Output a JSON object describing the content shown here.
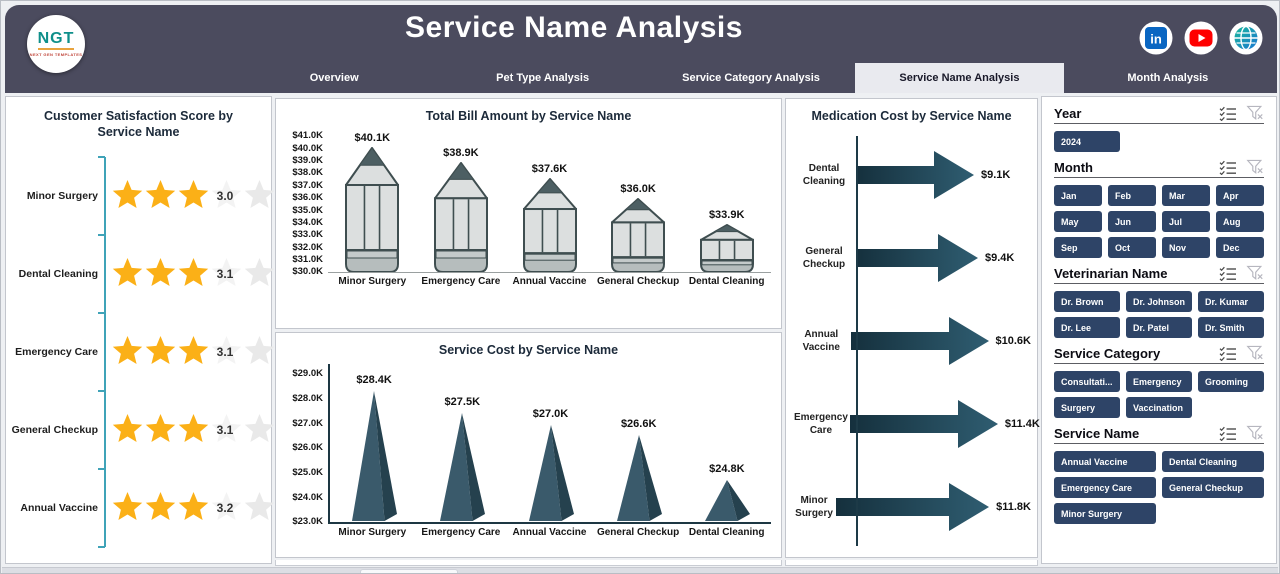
{
  "header": {
    "title": "Service Name Analysis",
    "logo": {
      "text": "NGT",
      "subtext": "NEXT GEN TEMPLATES"
    },
    "social": [
      "linkedin",
      "youtube",
      "website"
    ],
    "tabs": [
      {
        "label": "Overview",
        "active": false
      },
      {
        "label": "Pet Type Analysis",
        "active": false
      },
      {
        "label": "Service Category Analysis",
        "active": false
      },
      {
        "label": "Service Name Analysis",
        "active": true
      },
      {
        "label": "Month Analysis",
        "active": false
      }
    ]
  },
  "chart_data": [
    {
      "id": "satisfaction",
      "type": "bar",
      "title": "Customer Satisfaction Score by Service Name",
      "categories": [
        "Minor Surgery",
        "Dental Cleaning",
        "Emergency Care",
        "General Checkup",
        "Annual Vaccine"
      ],
      "values": [
        3.0,
        3.1,
        3.1,
        3.1,
        3.2
      ],
      "value_labels": [
        "3.0",
        "3.1",
        "3.1",
        "3.1",
        "3.2"
      ],
      "max_stars": 5,
      "filled_stars": 3
    },
    {
      "id": "total-bill",
      "type": "bar",
      "title": "Total Bill Amount by Service Name",
      "categories": [
        "Minor Surgery",
        "Emergency Care",
        "Annual Vaccine",
        "General Checkup",
        "Dental Cleaning"
      ],
      "values": [
        40.1,
        38.9,
        37.6,
        36.0,
        33.9
      ],
      "value_labels": [
        "$40.1K",
        "$38.9K",
        "$37.6K",
        "$36.0K",
        "$33.9K"
      ],
      "y_tick_labels": [
        "$41.0K",
        "$40.0K",
        "$39.0K",
        "$38.0K",
        "$37.0K",
        "$36.0K",
        "$35.0K",
        "$34.0K",
        "$33.0K",
        "$32.0K",
        "$31.0K",
        "$30.0K"
      ],
      "y_tick_values": [
        41,
        40,
        39,
        38,
        37,
        36,
        35,
        34,
        33,
        32,
        31,
        30
      ],
      "ylim": [
        30,
        41.5
      ],
      "unit": "K USD"
    },
    {
      "id": "service-cost",
      "type": "bar",
      "title": "Service Cost by Service Name",
      "categories": [
        "Minor Surgery",
        "Emergency Care",
        "Annual Vaccine",
        "General Checkup",
        "Dental Cleaning"
      ],
      "values": [
        28.4,
        27.5,
        27.0,
        26.6,
        24.8
      ],
      "value_labels": [
        "$28.4K",
        "$27.5K",
        "$27.0K",
        "$26.6K",
        "$24.8K"
      ],
      "y_tick_labels": [
        "$29.0K",
        "$28.0K",
        "$27.0K",
        "$26.0K",
        "$25.0K",
        "$24.0K",
        "$23.0K"
      ],
      "y_tick_values": [
        29,
        28,
        27,
        26,
        25,
        24,
        23
      ],
      "ylim": [
        23,
        29.4
      ],
      "unit": "K USD"
    },
    {
      "id": "medication-cost",
      "type": "bar",
      "orientation": "horizontal",
      "title": "Medication Cost by Service Name",
      "categories": [
        "Dental Cleaning",
        "General Checkup",
        "Annual Vaccine",
        "Emergency Care",
        "Minor Surgery"
      ],
      "values": [
        9.1,
        9.4,
        10.6,
        11.4,
        11.8
      ],
      "value_labels": [
        "$9.1K",
        "$9.4K",
        "$10.6K",
        "$11.4K",
        "$11.8K"
      ],
      "xlim": [
        0,
        12.3
      ],
      "unit": "K USD"
    }
  ],
  "filters": {
    "sections": [
      {
        "id": "year",
        "title": "Year",
        "columns": 3,
        "items": [
          "2024"
        ]
      },
      {
        "id": "month",
        "title": "Month",
        "columns": 4,
        "items": [
          "Jan",
          "Feb",
          "Mar",
          "Apr",
          "May",
          "Jun",
          "Jul",
          "Aug",
          "Sep",
          "Oct",
          "Nov",
          "Dec"
        ]
      },
      {
        "id": "veterinarian-name",
        "title": "Veterinarian Name",
        "columns": 3,
        "items": [
          "Dr. Brown",
          "Dr. Johnson",
          "Dr. Kumar",
          "Dr. Lee",
          "Dr. Patel",
          "Dr. Smith"
        ]
      },
      {
        "id": "service-category",
        "title": "Service Category",
        "columns": 3,
        "items": [
          "Consultati...",
          "Emergency",
          "Grooming",
          "Surgery",
          "Vaccination"
        ]
      },
      {
        "id": "service-name",
        "title": "Service Name",
        "columns": 2,
        "items": [
          "Annual Vaccine",
          "Dental Cleaning",
          "Emergency Care",
          "General Checkup",
          "Minor Surgery"
        ]
      }
    ]
  },
  "colors": {
    "header_bg": "#4B4B5E",
    "button_navy": "#2E4467",
    "star_gold": "#FBB017",
    "star_gray": "#E9E9E9",
    "star_faint": "#F3F3F3",
    "teal_axis": "#3FA3B8",
    "pencil_body": "#DCDFDF",
    "pencil_outline": "#3F4E50",
    "pencil_tip": "#4D5F63",
    "pencil_eraser": "#B6BDBD",
    "pencil_band": "#C4CACA",
    "cone": "#3A5A6B",
    "cone_dark": "#25414E",
    "arrow_start": "#15303D",
    "arrow_end": "#2F5D71",
    "linkedin": "#0A66C2",
    "youtube": "#FF0000",
    "globe": "#18B2C8"
  }
}
